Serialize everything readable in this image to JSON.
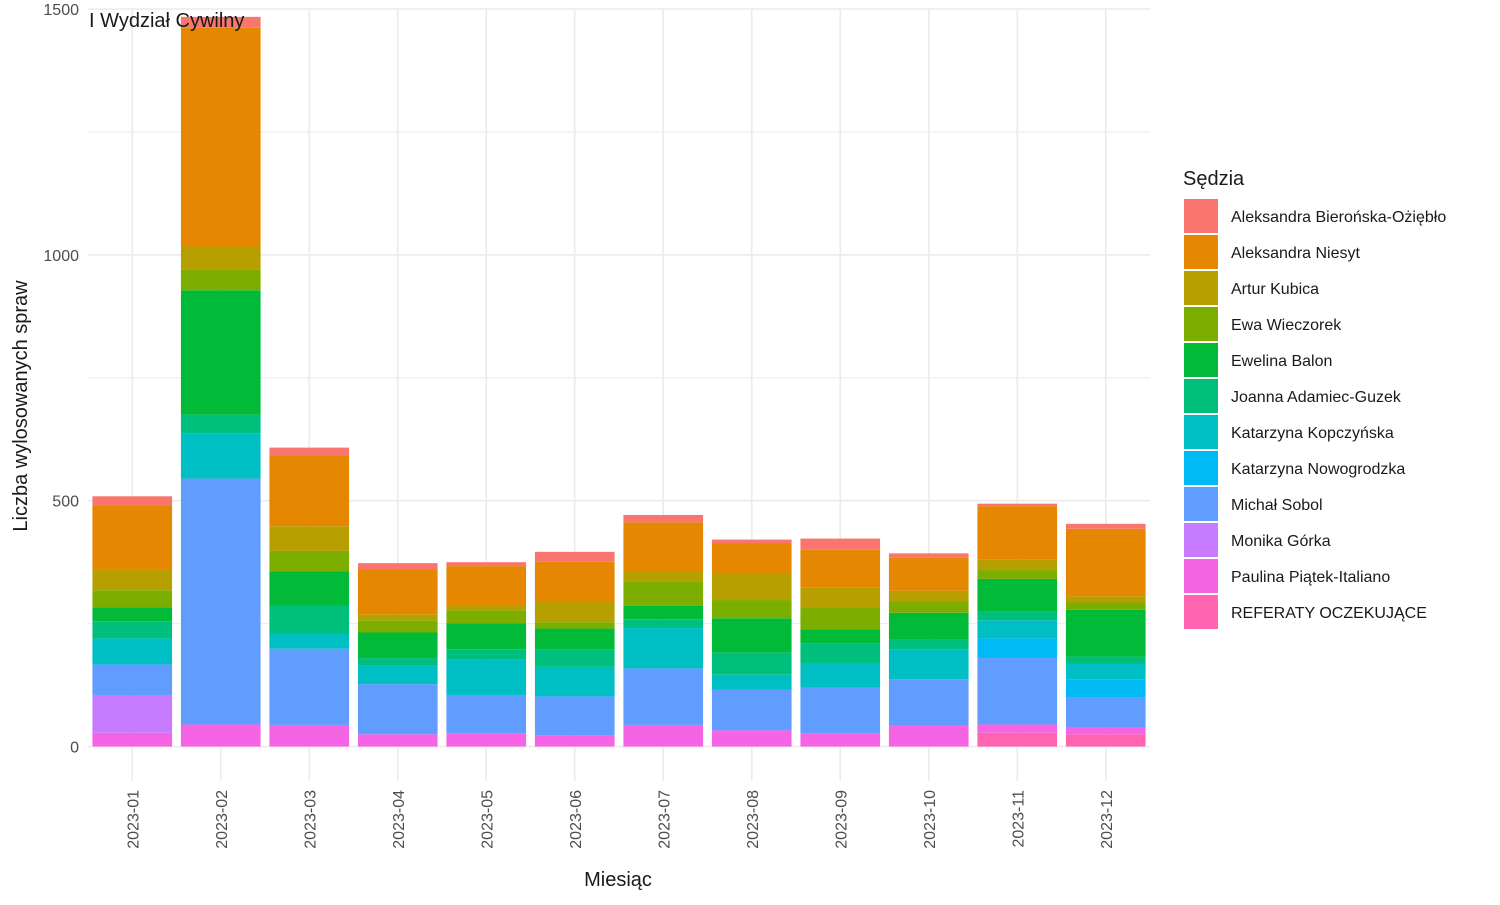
{
  "chart_data": {
    "type": "bar",
    "stacked": true,
    "title": "I Wydział Cywilny",
    "xlabel": "Miesiąc",
    "ylabel": "Liczba wylosowanych spraw",
    "ylim": [
      -70,
      1500
    ],
    "yticks": [
      0,
      500,
      1000,
      1500
    ],
    "grid": true,
    "legend_position": "right",
    "legend_title": "Sędzia",
    "categories": [
      "2023-01",
      "2023-02",
      "2023-03",
      "2023-04",
      "2023-05",
      "2023-06",
      "2023-07",
      "2023-08",
      "2023-09",
      "2023-10",
      "2023-11",
      "2023-12"
    ],
    "series": [
      {
        "name": "REFERATY OCZEKUJĄCE",
        "color": "#FF64B0",
        "values": [
          0,
          0,
          0,
          0,
          0,
          0,
          0,
          0,
          0,
          0,
          28,
          25
        ]
      },
      {
        "name": "Paulina Piątek-Italiano",
        "color": "#F564E3",
        "values": [
          28,
          45,
          44,
          25,
          27,
          22,
          44,
          33,
          27,
          43,
          17,
          13
        ]
      },
      {
        "name": "Monika Górka",
        "color": "#C77CFF",
        "values": [
          76,
          0,
          0,
          0,
          0,
          0,
          0,
          0,
          0,
          0,
          0,
          0
        ]
      },
      {
        "name": "Michał Sobol",
        "color": "#619CFF",
        "values": [
          63,
          500,
          155,
          102,
          78,
          80,
          115,
          83,
          93,
          94,
          135,
          62
        ]
      },
      {
        "name": "Katarzyna Nowogrodzka",
        "color": "#00B9F5",
        "values": [
          0,
          0,
          0,
          0,
          0,
          0,
          0,
          0,
          0,
          0,
          40,
          37
        ]
      },
      {
        "name": "Katarzyna Kopczyńska",
        "color": "#00BFC4",
        "values": [
          53,
          92,
          30,
          38,
          73,
          60,
          82,
          30,
          50,
          60,
          37,
          31
        ]
      },
      {
        "name": "Joanna Adamiec-Guzek",
        "color": "#00BF7D",
        "values": [
          35,
          38,
          57,
          15,
          20,
          35,
          18,
          45,
          40,
          20,
          17,
          15
        ]
      },
      {
        "name": "Ewelina Balon",
        "color": "#00BA38",
        "values": [
          28,
          253,
          70,
          52,
          53,
          43,
          27,
          70,
          28,
          55,
          67,
          95
        ]
      },
      {
        "name": "Ewa Wieczorek",
        "color": "#7CAE00",
        "values": [
          35,
          42,
          42,
          25,
          26,
          13,
          50,
          37,
          45,
          23,
          18,
          15
        ]
      },
      {
        "name": "Artur Kubica",
        "color": "#B79F00",
        "values": [
          43,
          47,
          50,
          12,
          10,
          43,
          20,
          55,
          40,
          22,
          22,
          13
        ]
      },
      {
        "name": "Aleksandra Niesyt",
        "color": "#E58700",
        "values": [
          130,
          445,
          143,
          92,
          80,
          80,
          100,
          60,
          77,
          68,
          108,
          137
        ]
      },
      {
        "name": "Aleksandra Bierońska-Ożiębło",
        "color": "#F8766D",
        "values": [
          18,
          22,
          17,
          12,
          8,
          20,
          15,
          8,
          23,
          8,
          5,
          10
        ]
      }
    ]
  }
}
